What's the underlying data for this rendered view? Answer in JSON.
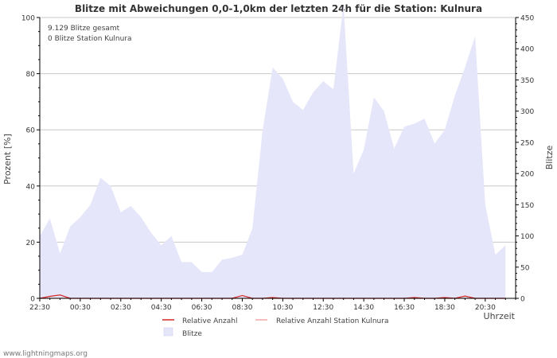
{
  "chart_data": {
    "type": "area",
    "title": "Blitze mit Abweichungen 0,0-1,0km der letzten 24h für die Station: Kulnura",
    "annotations": [
      "9.129 Blitze gesamt",
      "0 Blitze Station Kulnura"
    ],
    "ylabel_left": "Prozent   [%]",
    "ylabel_right": "Blitze",
    "xlabel": "Uhrzeit",
    "ylim_left": [
      0,
      100
    ],
    "ylim_right": [
      0,
      450
    ],
    "yticks_left": [
      "0",
      "20",
      "40",
      "60",
      "80",
      "100"
    ],
    "yticks_right": [
      "0",
      "50",
      "100",
      "150",
      "200",
      "250",
      "300",
      "350",
      "400",
      "450"
    ],
    "xticks": [
      "22:30",
      "00:30",
      "02:30",
      "04:30",
      "06:30",
      "08:30",
      "10:30",
      "12:30",
      "14:30",
      "16:30",
      "18:30",
      "20:30"
    ],
    "x_hours": [
      0,
      0.5,
      1,
      1.5,
      2,
      2.5,
      3,
      3.5,
      4,
      4.5,
      5,
      5.5,
      6,
      6.5,
      7,
      7.5,
      8,
      8.5,
      9,
      9.5,
      10,
      10.5,
      11,
      11.5,
      12,
      12.5,
      13,
      13.5,
      14,
      14.5,
      15,
      15.5,
      16,
      16.5,
      17,
      17.5,
      18,
      18.5,
      19,
      19.5,
      20,
      20.5,
      21,
      21.5,
      22,
      22.5,
      23
    ],
    "series": [
      {
        "name": "Blitze",
        "axis": "right",
        "color": "#e6e6fa",
        "values": [
          100,
          128,
          72,
          115,
          130,
          150,
          193,
          180,
          138,
          148,
          130,
          105,
          85,
          100,
          58,
          58,
          42,
          42,
          62,
          65,
          70,
          112,
          268,
          370,
          352,
          315,
          302,
          330,
          348,
          335,
          470,
          200,
          238,
          322,
          300,
          240,
          275,
          280,
          288,
          248,
          270,
          325,
          370,
          420,
          150,
          70,
          85
        ]
      },
      {
        "name": "Relative Anzahl",
        "axis": "left",
        "color": "#d62728",
        "values": [
          0,
          0.7,
          1.2,
          0,
          0,
          0,
          0,
          0,
          0,
          0,
          0,
          0,
          0,
          0,
          0,
          0,
          0,
          0,
          0,
          0,
          1,
          0,
          0,
          0.3,
          0,
          0,
          0,
          0,
          0,
          0,
          0,
          0,
          0,
          0,
          0,
          0,
          0,
          0.3,
          0,
          0,
          0.3,
          0,
          0.8,
          0,
          0,
          0,
          0
        ]
      },
      {
        "name": "Relative Anzahl Station Kulnura",
        "axis": "left",
        "color": "#f4a6a6",
        "values": [
          0,
          0,
          0,
          0,
          0,
          0,
          0,
          0,
          0,
          0,
          0,
          0,
          0,
          0,
          0,
          0,
          0,
          0,
          0,
          0,
          0,
          0,
          0,
          0,
          0,
          0,
          0,
          0,
          0,
          0,
          0,
          0,
          0,
          0,
          0,
          0,
          0,
          0,
          0,
          0,
          0,
          0,
          0,
          0,
          0,
          0,
          0
        ]
      }
    ],
    "legend": [
      {
        "label": "Relative Anzahl",
        "kind": "line",
        "color": "#d62728"
      },
      {
        "label": "Relative Anzahl Station Kulnura",
        "kind": "line",
        "color": "#f4a6a6"
      },
      {
        "label": "Blitze",
        "kind": "box",
        "color": "#e6e6fa"
      }
    ]
  },
  "footer": {
    "source": "www.lightningmaps.org"
  },
  "colors": {
    "grid": "#c8c8c8",
    "axis": "#000000",
    "text": "#333333"
  }
}
